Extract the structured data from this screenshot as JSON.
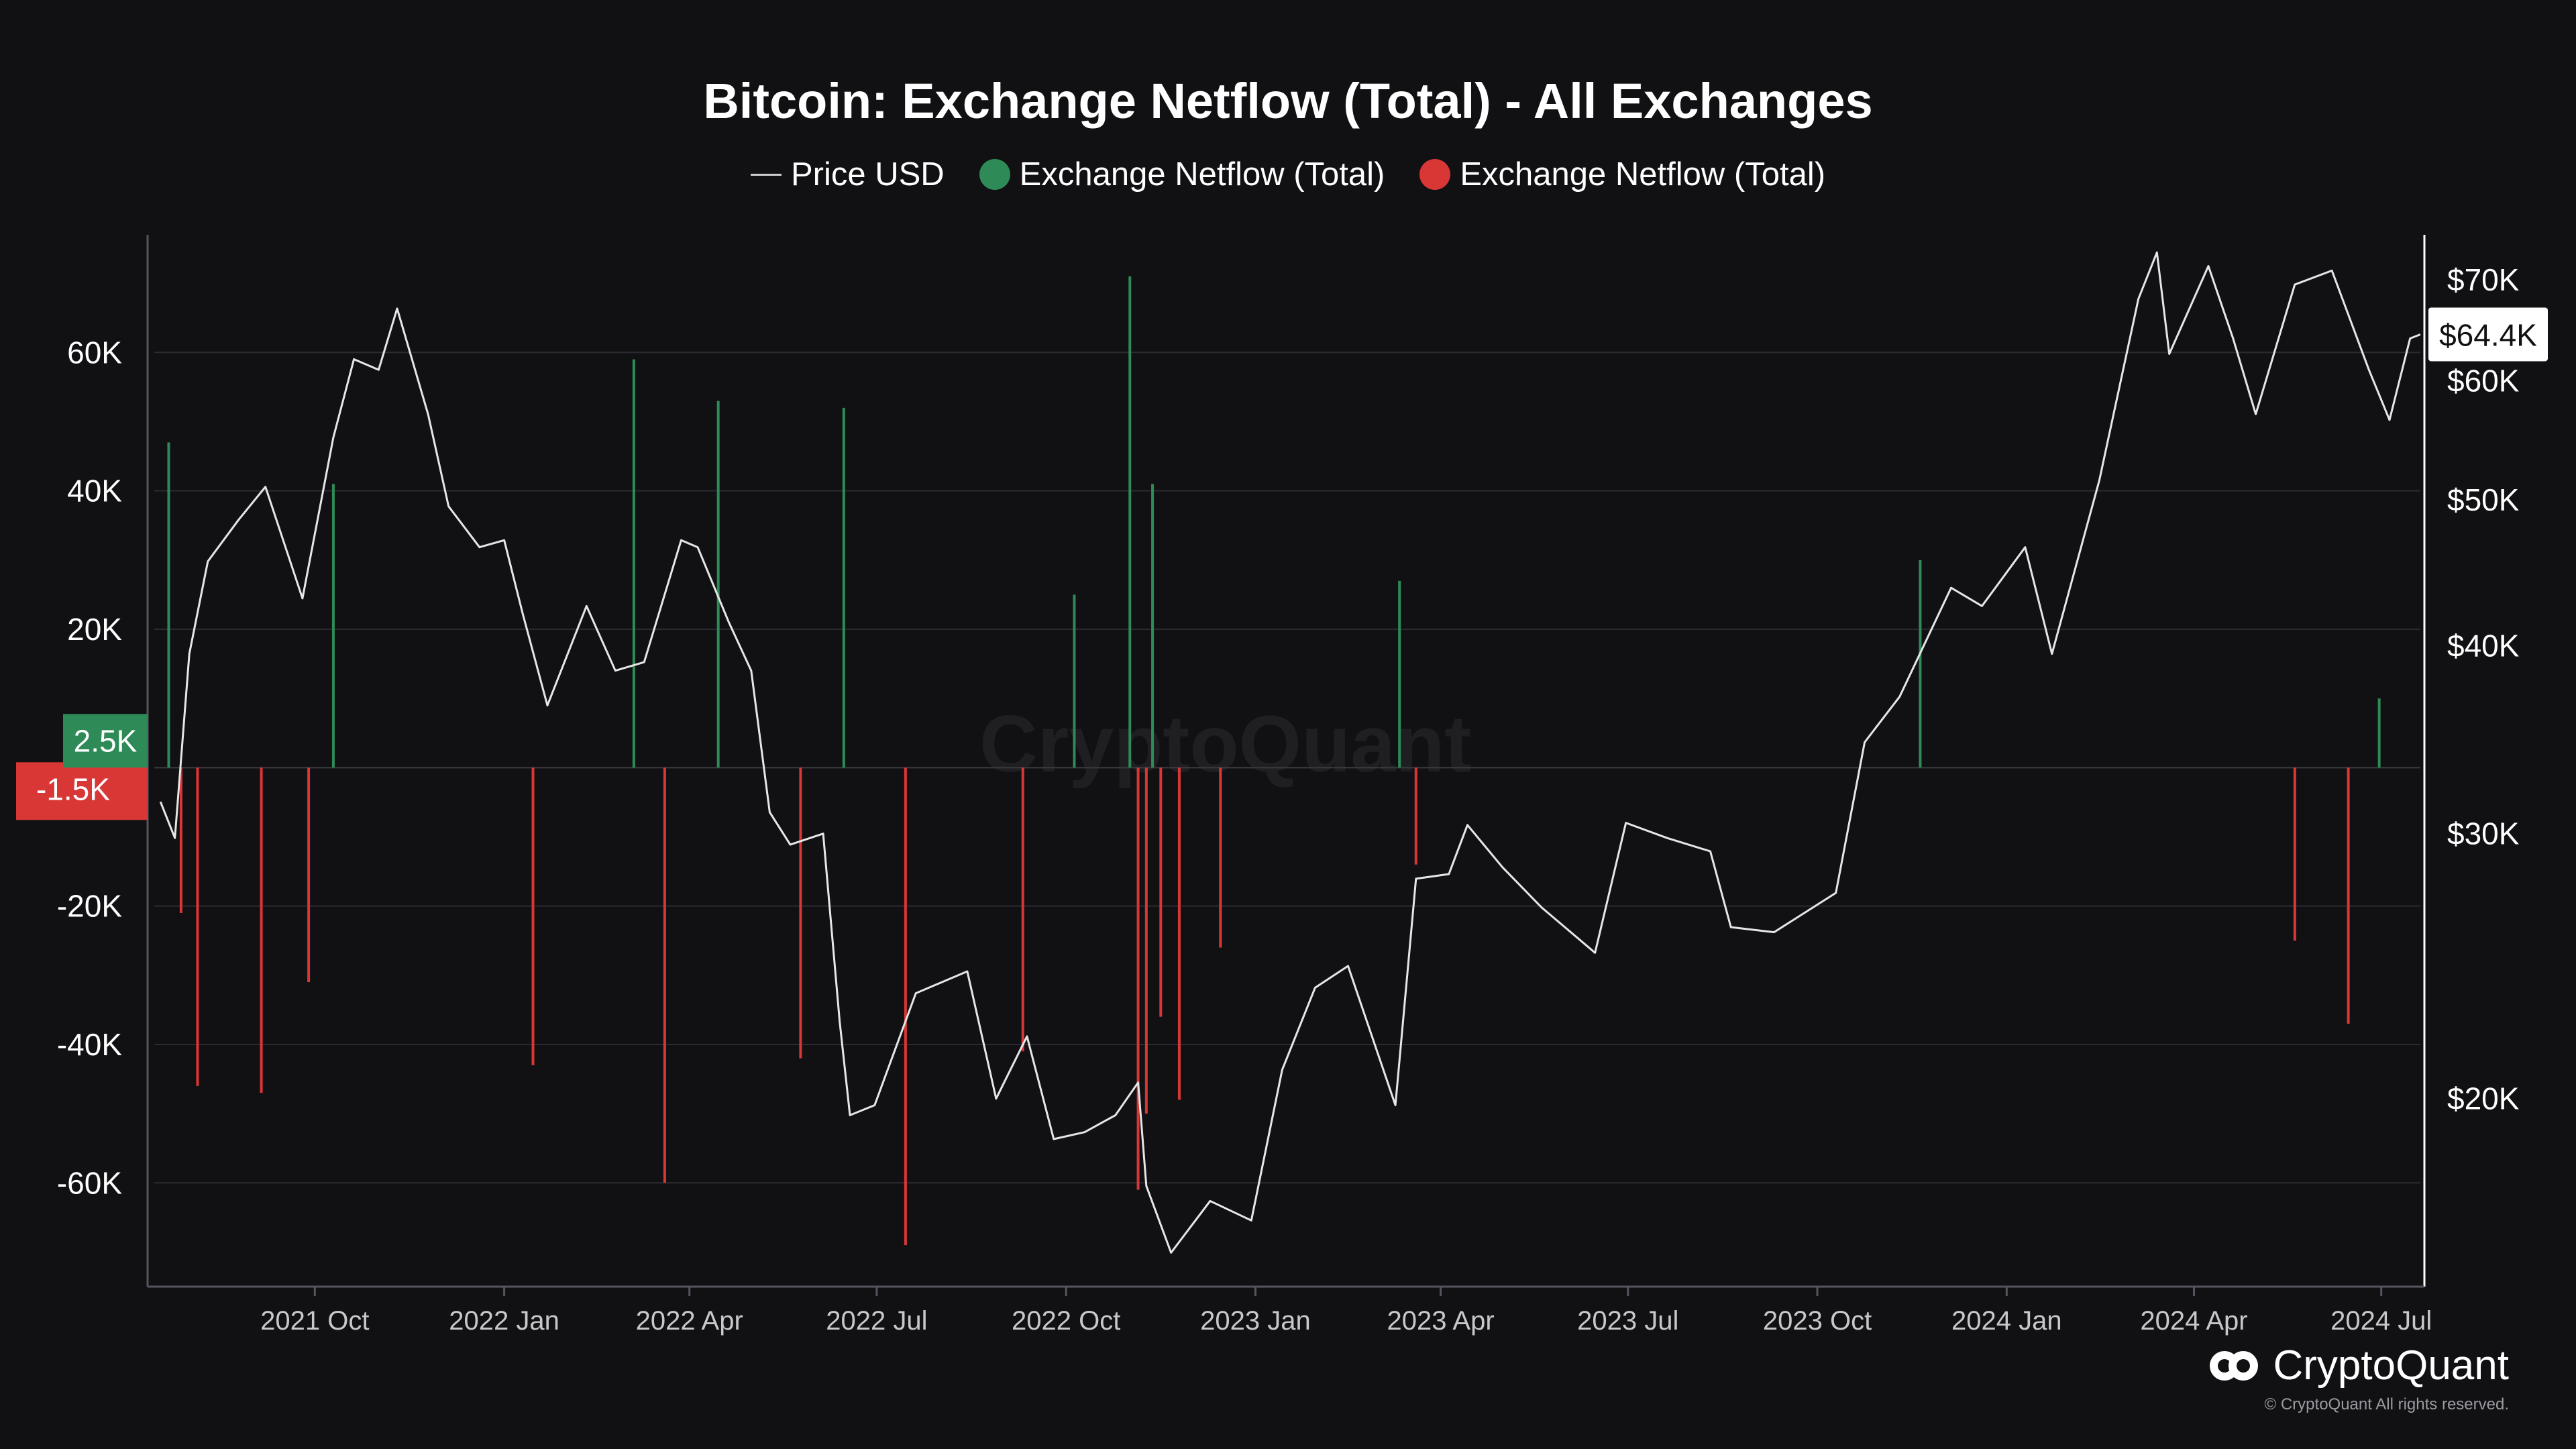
{
  "chart_data": {
    "type": "bar",
    "title": "Bitcoin: Exchange Netflow (Total) - All Exchanges",
    "legend": [
      {
        "name": "Price USD",
        "kind": "line",
        "color": "#d9d9d9"
      },
      {
        "name": "Exchange Netflow (Total)",
        "kind": "dot",
        "color": "#2e8b57"
      },
      {
        "name": "Exchange Netflow (Total)",
        "kind": "dot",
        "color": "#d93636"
      }
    ],
    "x_tick_labels": [
      "2021 Oct",
      "2022 Jan",
      "2022 Apr",
      "2022 Jul",
      "2022 Oct",
      "2023 Jan",
      "2023 Apr",
      "2023 Jul",
      "2023 Oct",
      "2024 Jan",
      "2024 Apr",
      "2024 Jul"
    ],
    "x_tick_dates": [
      "2021-10-01",
      "2022-01-01",
      "2022-04-01",
      "2022-07-01",
      "2022-10-01",
      "2023-01-01",
      "2023-04-01",
      "2023-07-01",
      "2023-10-01",
      "2024-01-01",
      "2024-04-01",
      "2024-07-01"
    ],
    "x_range": [
      "2021-07-15",
      "2024-07-20"
    ],
    "left_axis": {
      "ticks": [
        "60K",
        "40K",
        "20K",
        "-20K",
        "-40K",
        "-60K"
      ],
      "range": [
        -75000,
        77000
      ]
    },
    "right_axis": {
      "scale": "log",
      "ticks": [
        "$70K",
        "$60K",
        "$50K",
        "$40K",
        "$30K",
        "$20K"
      ],
      "range": [
        15000,
        75000
      ]
    },
    "last_values": {
      "price": "$64.4K",
      "netflow_positive": "2.5K",
      "netflow_negative": "-1.5K"
    },
    "price_series": {
      "name": "Price USD",
      "x": [
        "2021-07-18",
        "2021-07-25",
        "2021-08-01",
        "2021-08-10",
        "2021-08-25",
        "2021-09-07",
        "2021-09-25",
        "2021-10-10",
        "2021-10-20",
        "2021-11-01",
        "2021-11-10",
        "2021-11-25",
        "2021-12-05",
        "2021-12-20",
        "2022-01-01",
        "2022-01-10",
        "2022-01-22",
        "2022-02-10",
        "2022-02-24",
        "2022-03-10",
        "2022-03-28",
        "2022-04-05",
        "2022-04-20",
        "2022-05-01",
        "2022-05-10",
        "2022-05-20",
        "2022-06-05",
        "2022-06-13",
        "2022-06-18",
        "2022-06-30",
        "2022-07-20",
        "2022-08-14",
        "2022-08-28",
        "2022-09-12",
        "2022-09-25",
        "2022-10-10",
        "2022-10-25",
        "2022-11-05",
        "2022-11-09",
        "2022-11-21",
        "2022-12-10",
        "2022-12-30",
        "2023-01-14",
        "2023-01-30",
        "2023-02-15",
        "2023-03-10",
        "2023-03-20",
        "2023-04-05",
        "2023-04-14",
        "2023-05-01",
        "2023-05-20",
        "2023-06-15",
        "2023-06-30",
        "2023-07-20",
        "2023-08-10",
        "2023-08-20",
        "2023-09-10",
        "2023-10-10",
        "2023-10-24",
        "2023-11-10",
        "2023-12-05",
        "2023-12-20",
        "2024-01-10",
        "2024-01-23",
        "2024-02-15",
        "2024-03-05",
        "2024-03-14",
        "2024-03-20",
        "2024-04-08",
        "2024-04-20",
        "2024-05-01",
        "2024-05-20",
        "2024-06-07",
        "2024-06-25",
        "2024-07-05",
        "2024-07-15",
        "2024-07-20"
      ],
      "y": [
        31500,
        29800,
        39500,
        45500,
        48500,
        51000,
        43000,
        55000,
        62000,
        61000,
        67000,
        57000,
        49500,
        46500,
        47000,
        42000,
        36500,
        42500,
        38500,
        39000,
        47000,
        46500,
        41500,
        38500,
        31000,
        29500,
        30000,
        22500,
        19500,
        19800,
        23500,
        24300,
        20000,
        22000,
        18800,
        19000,
        19500,
        20500,
        17500,
        15800,
        17100,
        16600,
        20900,
        23700,
        24500,
        19800,
        28000,
        28200,
        30400,
        28500,
        26800,
        25000,
        30500,
        29800,
        29200,
        26000,
        25800,
        27400,
        34500,
        37000,
        43700,
        42500,
        46500,
        39500,
        51500,
        68000,
        73000,
        62500,
        71500,
        64000,
        57000,
        69500,
        71000,
        61000,
        56500,
        64000,
        64400
      ]
    },
    "netflow_series": {
      "name": "Exchange Netflow (Total)",
      "colors": {
        "positive": "#2e8b57",
        "negative": "#d93636"
      },
      "dates": [
        "2021-07-22",
        "2021-07-28",
        "2021-08-05",
        "2021-09-05",
        "2021-09-28",
        "2021-10-10",
        "2022-01-15",
        "2022-03-05",
        "2022-03-20",
        "2022-04-15",
        "2022-05-25",
        "2022-06-15",
        "2022-07-15",
        "2022-09-10",
        "2022-10-05",
        "2022-11-01",
        "2022-11-05",
        "2022-11-09",
        "2022-11-12",
        "2022-11-16",
        "2022-11-25",
        "2022-12-15",
        "2023-03-12",
        "2023-03-20",
        "2023-11-20",
        "2024-05-20",
        "2024-06-15",
        "2024-06-30"
      ],
      "values": [
        47000,
        -21000,
        -46000,
        -47000,
        -31000,
        41000,
        -43000,
        59000,
        -60000,
        53000,
        -42000,
        52000,
        -69000,
        -41000,
        25000,
        71000,
        -61000,
        -50000,
        41000,
        -36000,
        -48000,
        -26000,
        27000,
        -14000,
        30000,
        -25000,
        -37000,
        10000
      ]
    }
  },
  "watermark": "CryptoQuant",
  "brand": {
    "name": "CryptoQuant",
    "copyright": "© CryptoQuant All rights reserved."
  }
}
